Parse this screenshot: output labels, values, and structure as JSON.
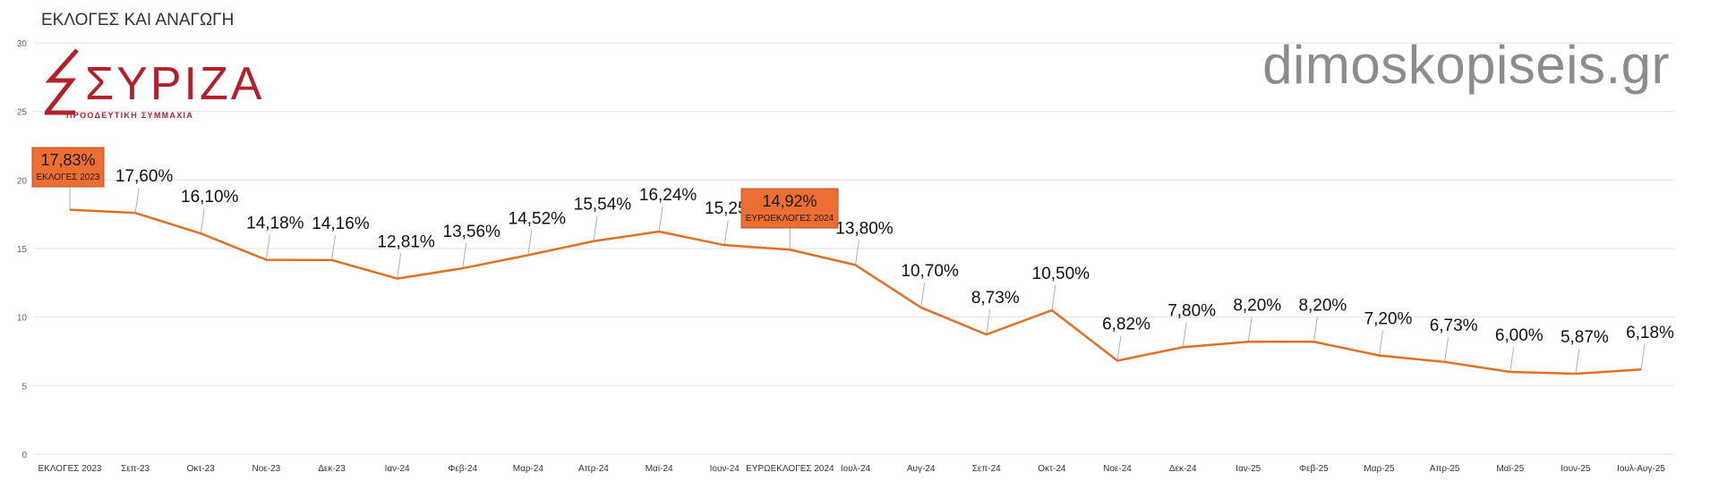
{
  "title": "ΕΚΛΟΓΕΣ ΚΑΙ ΑΝΑΓΩΓΗ",
  "watermark": "dimoskopiseis.gr",
  "logo": {
    "text": "ΣΥΡΙΖΑ",
    "subtitle": "ΠΡΟΟΔΕΥΤΙΚΗ ΣΥΜΜΑΧΙΑ",
    "color": "#b3202c"
  },
  "colors": {
    "line": "#e07024",
    "highlight": "#ec6e32",
    "grid": "#e2e2e2"
  },
  "chart_data": {
    "type": "line",
    "title": "ΕΚΛΟΓΕΣ ΚΑΙ ΑΝΑΓΩΓΗ",
    "xlabel": "",
    "ylabel": "",
    "ylim": [
      0,
      30
    ],
    "yticks": [
      0,
      5,
      10,
      15,
      20,
      25,
      30
    ],
    "grid": true,
    "categories": [
      "ΕΚΛΟΓΕΣ 2023",
      "Σεπ-23",
      "Οκτ-23",
      "Νοε-23",
      "Δεκ-23",
      "Ιαν-24",
      "Φεβ-24",
      "Μαρ-24",
      "Απρ-24",
      "Μαϊ-24",
      "Ιουν-24",
      "ΕΥΡΩΕΚΛΟΓΕΣ 2024",
      "Ιουλ-24",
      "Αυγ-24",
      "Σεπ-24",
      "Οκτ-24",
      "Νοε-24",
      "Δεκ-24",
      "Ιαν-25",
      "Φεβ-25",
      "Μαρ-25",
      "Απρ-25",
      "Μαϊ-25",
      "Ιουν-25",
      "Ιουλ-Αυγ-25"
    ],
    "values": [
      17.83,
      17.6,
      16.1,
      14.18,
      14.16,
      12.81,
      13.56,
      14.52,
      15.54,
      16.24,
      15.25,
      14.92,
      13.8,
      10.7,
      8.73,
      10.5,
      6.82,
      7.8,
      8.2,
      8.2,
      7.2,
      6.73,
      6.0,
      5.87,
      6.18
    ],
    "labels": [
      "17,83%",
      "17,60%",
      "16,10%",
      "14,18%",
      "14,16%",
      "12,81%",
      "13,56%",
      "14,52%",
      "15,54%",
      "16,24%",
      "15,25%",
      "14,92%",
      "13,80%",
      "10,70%",
      "8,73%",
      "10,50%",
      "6,82%",
      "7,80%",
      "8,20%",
      "8,20%",
      "7,20%",
      "6,73%",
      "6,00%",
      "5,87%",
      "6,18%"
    ],
    "highlights": [
      {
        "index": 0,
        "value_label": "17,83%",
        "name": "ΕΚΛΟΓΕΣ 2023"
      },
      {
        "index": 11,
        "value_label": "14,92%",
        "name": "ΕΥΡΩΕΚΛΟΓΕΣ 2024"
      }
    ]
  }
}
